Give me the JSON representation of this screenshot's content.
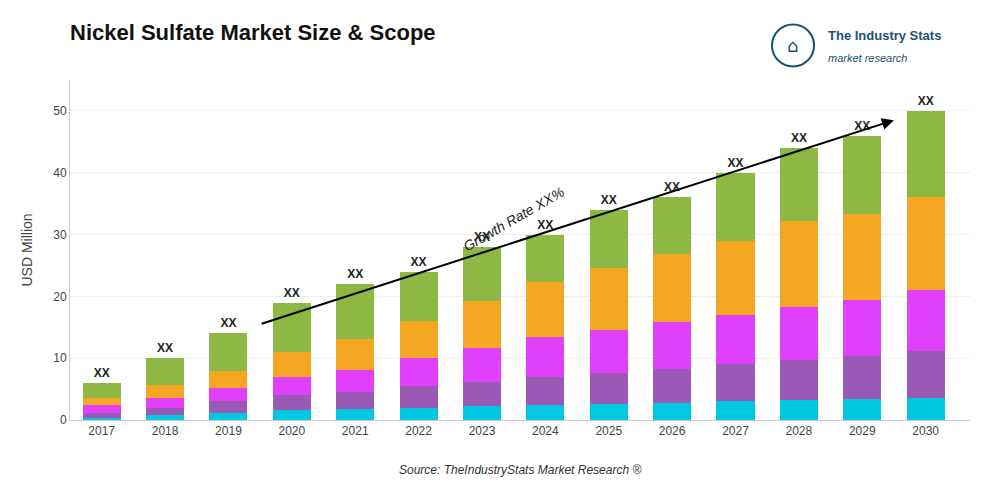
{
  "chart_data": {
    "type": "bar",
    "stacked": true,
    "title": "Nickel Sulfate Market Size & Scope",
    "ylabel": "USD Million",
    "x": [
      2017,
      2018,
      2019,
      2020,
      2021,
      2022,
      2023,
      2024,
      2025,
      2026,
      2027,
      2028,
      2029,
      2030
    ],
    "series": [
      {
        "color": "#00c8e0",
        "values": [
          0.4,
          0.8,
          1.2,
          1.6,
          1.8,
          2.0,
          2.2,
          2.4,
          2.6,
          2.8,
          3.0,
          3.2,
          3.4,
          3.6
        ]
      },
      {
        "color": "#9b59b6",
        "values": [
          0.8,
          1.2,
          1.8,
          2.4,
          2.8,
          3.5,
          4.0,
          4.5,
          5.0,
          5.5,
          6.0,
          6.5,
          7.0,
          7.5
        ]
      },
      {
        "color": "#e040fb",
        "values": [
          1.2,
          1.6,
          2.2,
          3.0,
          3.5,
          4.5,
          5.5,
          6.5,
          7.0,
          7.5,
          8.0,
          8.5,
          9.0,
          10.0
        ]
      },
      {
        "color": "#f5a623",
        "values": [
          1.2,
          2.0,
          2.8,
          4.0,
          5.0,
          6.0,
          7.5,
          9.0,
          10.0,
          11.0,
          12.0,
          14.0,
          14.0,
          15.0
        ]
      },
      {
        "color": "#8db843",
        "values": [
          2.4,
          4.4,
          6.0,
          8.0,
          8.9,
          8.0,
          8.8,
          7.6,
          9.4,
          9.2,
          11.0,
          11.8,
          12.6,
          13.9
        ]
      }
    ],
    "bar_labels": [
      "XX",
      "XX",
      "XX",
      "XX",
      "XX",
      "XX",
      "XX",
      "XX",
      "XX",
      "XX",
      "XX",
      "XX",
      "XX",
      "XX"
    ],
    "xlim": [
      2016.5,
      2030.7
    ],
    "xticks": [
      2017,
      2018,
      2019,
      2020,
      2021,
      2022,
      2023,
      2024,
      2025,
      2026,
      2027,
      2028,
      2029,
      2030
    ],
    "ylim": [
      0,
      55
    ],
    "yticks": [
      0,
      10,
      20,
      30,
      40,
      50
    ],
    "grid": true,
    "background": "#ffffff",
    "annotations": [
      {
        "text": "Growth Rate XX%",
        "x": 2023.5,
        "y": 32.5
      }
    ],
    "arrow": {
      "from": [
        2019.5,
        15.5
      ],
      "to": [
        2029.5,
        48.5
      ]
    },
    "source": "Source: TheIndustryStats Market Research ®",
    "logo_text": "The Industry Stats",
    "logo_subtext": "market research",
    "logo_symbol": "⌂"
  }
}
